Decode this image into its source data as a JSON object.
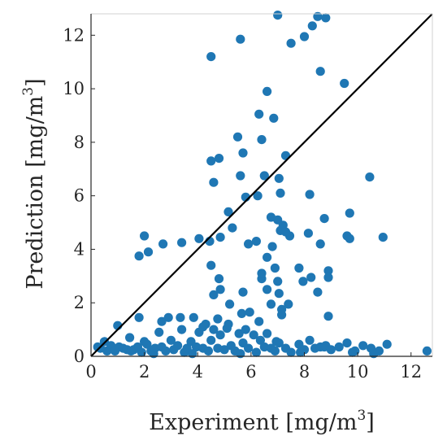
{
  "chart_data": {
    "type": "scatter",
    "xlabel": "Experiment [mg/m",
    "xlabel_sup": "3",
    "xlabel_end": "]",
    "ylabel": "Prediction [mg/m",
    "ylabel_sup": "3",
    "ylabel_end": "]",
    "xlim": [
      0,
      12.8
    ],
    "ylim": [
      0,
      12.8
    ],
    "xticks": [
      "0",
      "2",
      "4",
      "6",
      "8",
      "10",
      "12"
    ],
    "yticks": [
      "0",
      "2",
      "4",
      "6",
      "8",
      "10",
      "12"
    ],
    "grid": false,
    "reference_line": {
      "from": [
        0,
        0
      ],
      "to": [
        12.8,
        12.8
      ],
      "color": "#000000"
    },
    "point_color": "#1f77b4",
    "points": [
      [
        0.25,
        0.35
      ],
      [
        0.35,
        0.3
      ],
      [
        0.5,
        0.55
      ],
      [
        0.6,
        0.2
      ],
      [
        0.75,
        0.4
      ],
      [
        0.9,
        0.2
      ],
      [
        1.0,
        1.15
      ],
      [
        1.05,
        0.35
      ],
      [
        1.2,
        0.3
      ],
      [
        1.35,
        0.25
      ],
      [
        1.45,
        0.7
      ],
      [
        1.6,
        0.25
      ],
      [
        1.75,
        0.35
      ],
      [
        1.8,
        1.45
      ],
      [
        1.9,
        0.15
      ],
      [
        2.0,
        0.55
      ],
      [
        2.1,
        0.45
      ],
      [
        2.25,
        0.2
      ],
      [
        2.4,
        0.3
      ],
      [
        2.55,
        0.9
      ],
      [
        2.65,
        0.35
      ],
      [
        2.8,
        0.2
      ],
      [
        2.9,
        1.45
      ],
      [
        3.0,
        0.6
      ],
      [
        3.1,
        0.25
      ],
      [
        3.25,
        0.4
      ],
      [
        3.4,
        1.0
      ],
      [
        3.5,
        0.15
      ],
      [
        3.6,
        0.3
      ],
      [
        3.75,
        0.55
      ],
      [
        3.85,
        1.45
      ],
      [
        3.95,
        0.35
      ],
      [
        4.05,
        0.9
      ],
      [
        4.2,
        0.3
      ],
      [
        4.3,
        1.2
      ],
      [
        4.4,
        0.2
      ],
      [
        4.5,
        0.6
      ],
      [
        4.6,
        1.0
      ],
      [
        4.75,
        0.3
      ],
      [
        4.85,
        0.8
      ],
      [
        5.0,
        0.25
      ],
      [
        5.1,
        1.05
      ],
      [
        5.25,
        0.4
      ],
      [
        5.4,
        0.2
      ],
      [
        5.55,
        0.85
      ],
      [
        5.7,
        0.5
      ],
      [
        5.8,
        1.0
      ],
      [
        5.9,
        0.3
      ],
      [
        6.1,
        0.8
      ],
      [
        6.2,
        0.15
      ],
      [
        6.35,
        0.6
      ],
      [
        6.5,
        0.35
      ],
      [
        6.6,
        0.85
      ],
      [
        6.75,
        0.3
      ],
      [
        6.9,
        0.2
      ],
      [
        7.05,
        0.5
      ],
      [
        7.3,
        0.3
      ],
      [
        7.5,
        0.15
      ],
      [
        7.8,
        0.45
      ],
      [
        8.0,
        0.25
      ],
      [
        8.2,
        0.6
      ],
      [
        8.4,
        0.3
      ],
      [
        8.6,
        0.35
      ],
      [
        8.8,
        0.4
      ],
      [
        9.0,
        0.25
      ],
      [
        9.3,
        0.35
      ],
      [
        9.6,
        0.5
      ],
      [
        9.9,
        0.2
      ],
      [
        10.2,
        0.4
      ],
      [
        10.5,
        0.3
      ],
      [
        10.8,
        0.2
      ],
      [
        11.1,
        0.45
      ],
      [
        12.6,
        0.2
      ],
      [
        2.65,
        1.3
      ],
      [
        3.35,
        1.45
      ],
      [
        4.2,
        1.1
      ],
      [
        4.75,
        1.4
      ],
      [
        5.15,
        1.2
      ],
      [
        5.65,
        1.6
      ],
      [
        6.3,
        1.3
      ],
      [
        7.15,
        1.55
      ],
      [
        8.9,
        1.5
      ],
      [
        1.8,
        3.75
      ],
      [
        2.0,
        4.5
      ],
      [
        2.15,
        3.9
      ],
      [
        2.7,
        4.2
      ],
      [
        3.4,
        4.25
      ],
      [
        4.05,
        4.4
      ],
      [
        4.45,
        4.3
      ],
      [
        4.85,
        4.45
      ],
      [
        5.3,
        4.8
      ],
      [
        5.9,
        4.2
      ],
      [
        6.2,
        4.3
      ],
      [
        6.6,
        3.7
      ],
      [
        6.8,
        4.1
      ],
      [
        7.1,
        4.7
      ],
      [
        7.45,
        4.5
      ],
      [
        7.8,
        3.3
      ],
      [
        8.15,
        4.6
      ],
      [
        8.6,
        4.2
      ],
      [
        8.9,
        3.2
      ],
      [
        9.6,
        4.5
      ],
      [
        9.7,
        4.4
      ],
      [
        10.95,
        4.45
      ],
      [
        4.5,
        3.4
      ],
      [
        4.6,
        2.3
      ],
      [
        4.8,
        2.9
      ],
      [
        4.85,
        2.5
      ],
      [
        5.2,
        1.95
      ],
      [
        5.7,
        2.4
      ],
      [
        5.95,
        1.65
      ],
      [
        6.4,
        2.9
      ],
      [
        6.6,
        2.5
      ],
      [
        6.75,
        1.95
      ],
      [
        7.05,
        2.35
      ],
      [
        7.15,
        1.75
      ],
      [
        7.4,
        1.95
      ],
      [
        7.95,
        2.8
      ],
      [
        8.25,
        2.95
      ],
      [
        8.5,
        2.4
      ],
      [
        8.9,
        2.95
      ],
      [
        6.4,
        3.1
      ],
      [
        6.9,
        3.3
      ],
      [
        7.0,
        2.8
      ],
      [
        4.5,
        7.3
      ],
      [
        4.8,
        7.4
      ],
      [
        5.7,
        7.6
      ],
      [
        6.4,
        8.1
      ],
      [
        6.85,
        8.9
      ],
      [
        7.3,
        7.5
      ],
      [
        5.5,
        8.2
      ],
      [
        6.3,
        9.05
      ],
      [
        6.6,
        9.9
      ],
      [
        5.6,
        6.75
      ],
      [
        6.5,
        6.75
      ],
      [
        7.05,
        6.65
      ],
      [
        7.1,
        6.1
      ],
      [
        5.8,
        5.95
      ],
      [
        6.25,
        6.0
      ],
      [
        4.6,
        6.5
      ],
      [
        5.15,
        5.4
      ],
      [
        6.75,
        5.2
      ],
      [
        7.0,
        5.1
      ],
      [
        7.2,
        4.9
      ],
      [
        7.3,
        4.65
      ],
      [
        8.2,
        6.05
      ],
      [
        8.75,
        5.15
      ],
      [
        9.7,
        5.35
      ],
      [
        10.45,
        6.7
      ],
      [
        4.5,
        11.2
      ],
      [
        5.6,
        11.85
      ],
      [
        7.0,
        12.75
      ],
      [
        7.5,
        11.7
      ],
      [
        8.0,
        11.95
      ],
      [
        8.3,
        12.35
      ],
      [
        8.5,
        12.7
      ],
      [
        8.8,
        12.65
      ],
      [
        8.6,
        10.65
      ],
      [
        9.5,
        10.2
      ],
      [
        8.75,
        0.35
      ],
      [
        9.8,
        0.15
      ],
      [
        1.5,
        0.2
      ],
      [
        2.35,
        0.1
      ],
      [
        3.8,
        0.1
      ],
      [
        5.6,
        0.1
      ],
      [
        6.95,
        0.55
      ],
      [
        7.85,
        0.15
      ],
      [
        10.6,
        0.1
      ]
    ]
  }
}
